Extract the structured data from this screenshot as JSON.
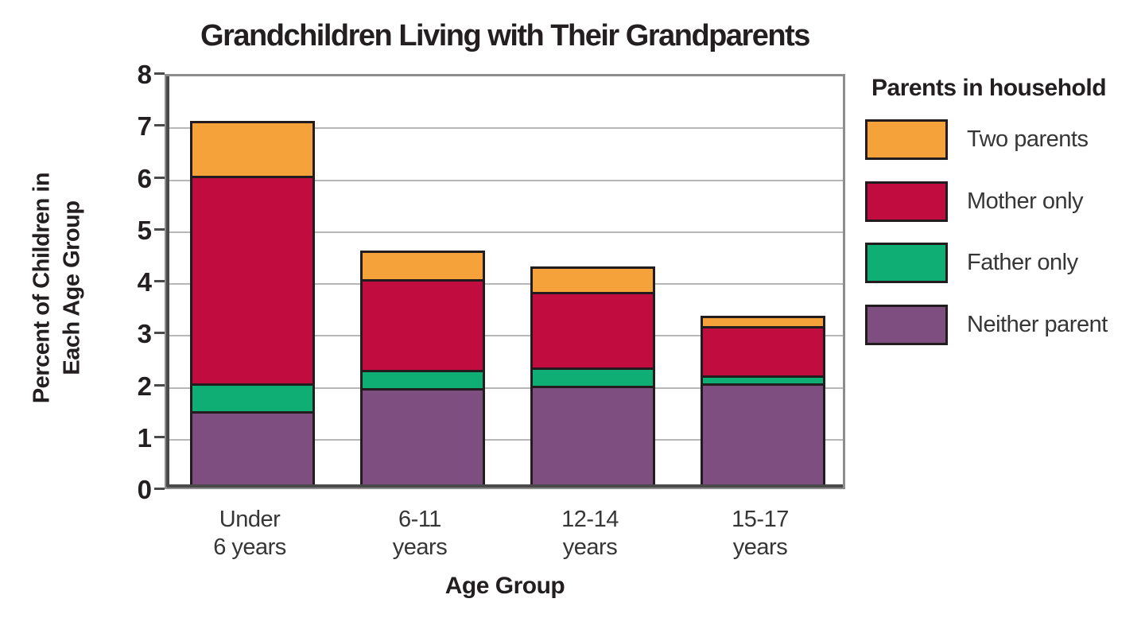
{
  "chart_data": {
    "type": "bar",
    "stacked": true,
    "title": "Grandchildren Living with Their Grandparents",
    "xlabel": "Age Group",
    "ylabel_lines": [
      "Percent of Children in",
      "Each Age Group"
    ],
    "legend_title": "Parents in household",
    "legend_position": "right",
    "grid": true,
    "ylim": [
      0,
      8
    ],
    "yticks": [
      0,
      1,
      2,
      3,
      4,
      5,
      6,
      7,
      8
    ],
    "categories": [
      [
        "Under",
        "6 years"
      ],
      [
        "6-11",
        "years"
      ],
      [
        "12-14",
        "years"
      ],
      [
        "15-17",
        "years"
      ]
    ],
    "series": [
      {
        "name": "Two parents",
        "color": "#F5A23B",
        "values": [
          1.05,
          0.55,
          0.5,
          0.2
        ]
      },
      {
        "name": "Mother only",
        "color": "#C10C40",
        "values": [
          4.0,
          1.75,
          1.45,
          0.95
        ]
      },
      {
        "name": "Father only",
        "color": "#0FAE75",
        "values": [
          0.55,
          0.35,
          0.35,
          0.15
        ]
      },
      {
        "name": "Neither parent",
        "color": "#7E4E80",
        "values": [
          1.45,
          1.9,
          1.95,
          2.0
        ]
      }
    ],
    "stack_order_bottom_to_top": [
      "Neither parent",
      "Father only",
      "Mother only",
      "Two parents"
    ],
    "totals": [
      7.05,
      4.55,
      4.25,
      3.3
    ]
  },
  "colors": {
    "background": "#ffffff",
    "grid": "#b7b7b7",
    "plot_border": "#8d8d8d",
    "axis": "#4a4a4a",
    "segment_border": "#221c1e",
    "title_text": "#231f20",
    "label_text": "#363636"
  }
}
